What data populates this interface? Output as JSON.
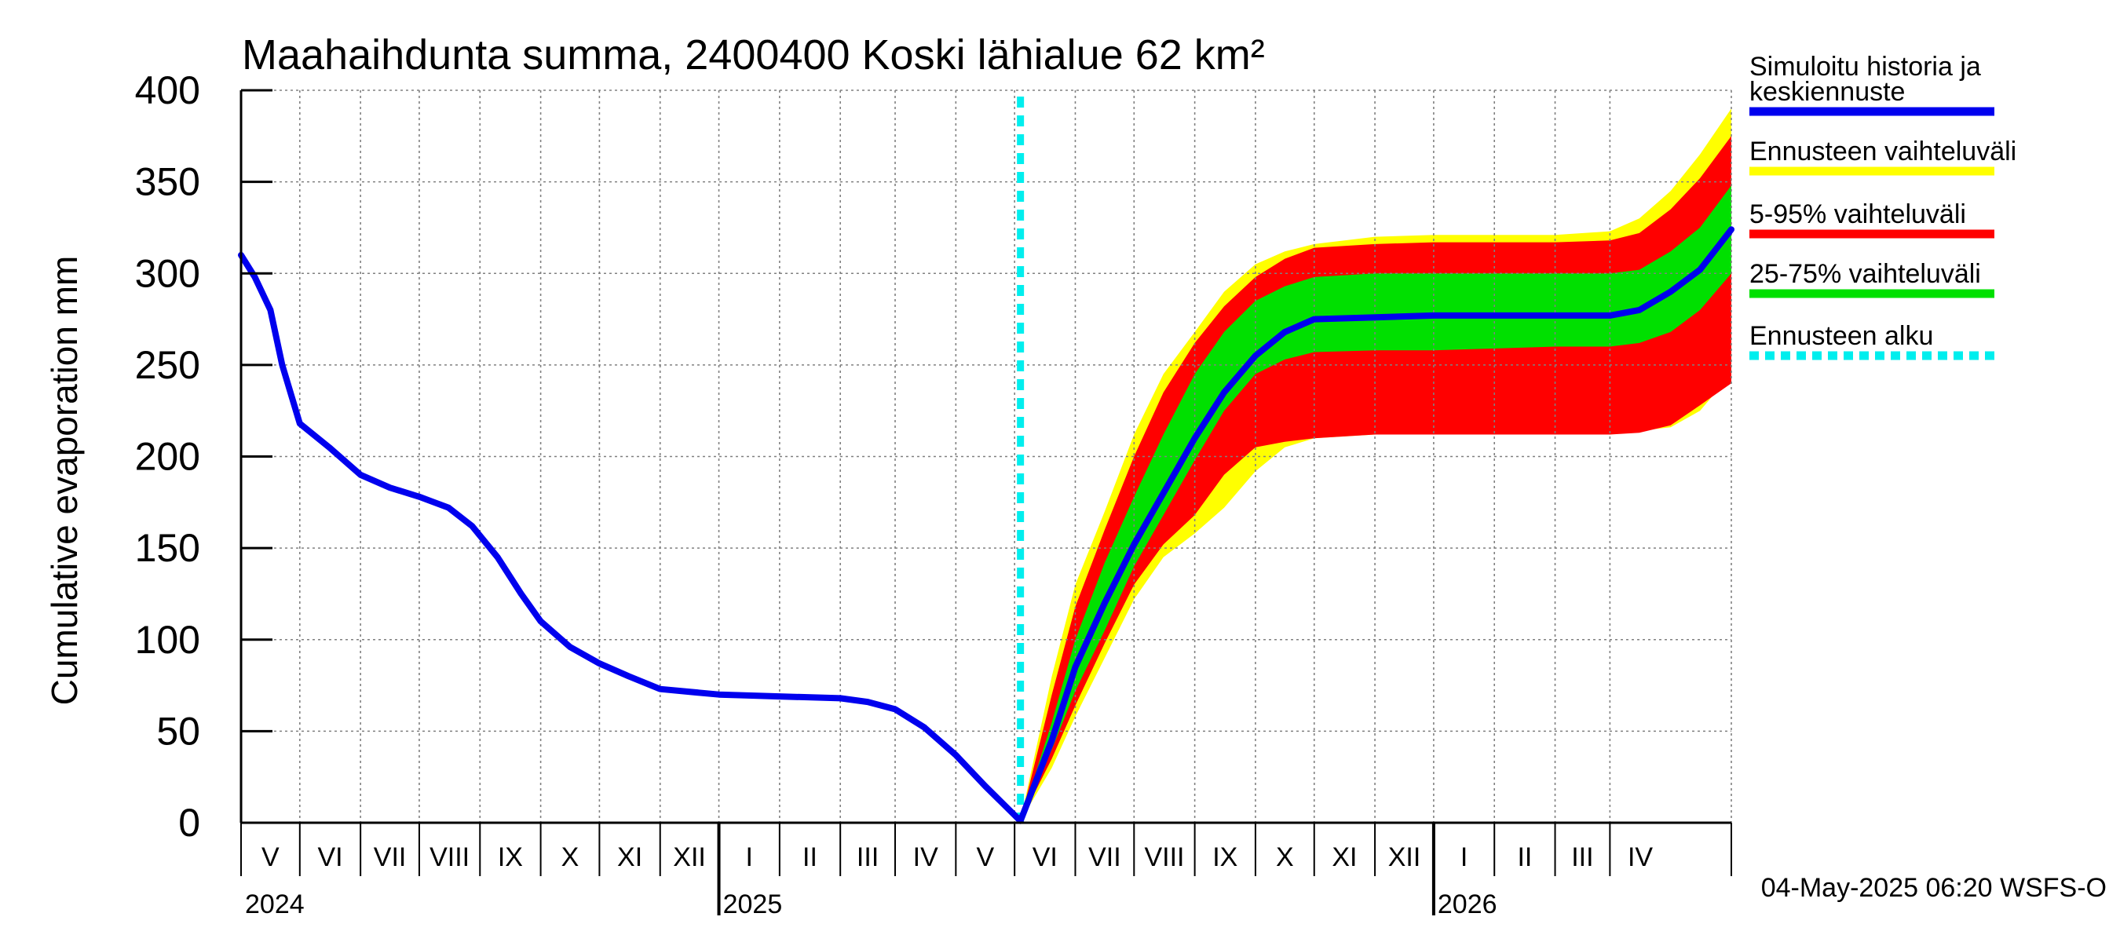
{
  "colors": {
    "history": "#0000ee",
    "forecast_range": "#ffff00",
    "p5_95": "#ff0000",
    "p25_75": "#00e000",
    "forecast_start": "#00eeee",
    "grid": "#808080"
  },
  "timestamp": "04-May-2025 06:20 WSFS-O",
  "legend": [
    {
      "lines": [
        "Simuloitu historia ja",
        "keskiennuste"
      ],
      "color_key": "history",
      "style": "solid"
    },
    {
      "lines": [
        "Ennusteen vaihteluväli"
      ],
      "color_key": "forecast_range",
      "style": "solid"
    },
    {
      "lines": [
        "5-95% vaihteluväli"
      ],
      "color_key": "p5_95",
      "style": "solid"
    },
    {
      "lines": [
        "25-75% vaihteluväli"
      ],
      "color_key": "p25_75",
      "style": "solid"
    },
    {
      "lines": [
        "Ennusteen alku"
      ],
      "color_key": "forecast_start",
      "style": "dashed"
    }
  ],
  "chart_data": {
    "type": "area",
    "title": "Maahaihdunta summa, 2400400 Koski lähialue 62 km²",
    "ylabel": "Cumulative evaporation   mm",
    "xlabel": "",
    "ylim": [
      0,
      400
    ],
    "yticks": [
      0,
      50,
      100,
      150,
      200,
      250,
      300,
      350,
      400
    ],
    "xlim": [
      "2024-04-01",
      "2026-05-02"
    ],
    "grid": true,
    "legend_position": "right",
    "x_month_labels": [
      {
        "label": "V",
        "start": "2024-04-01",
        "end": "2024-05-01"
      },
      {
        "label": "VI",
        "start": "2024-05-01",
        "end": "2024-06-01"
      },
      {
        "label": "VII",
        "start": "2024-06-01",
        "end": "2024-07-01"
      },
      {
        "label": "VIII",
        "start": "2024-07-01",
        "end": "2024-08-01"
      },
      {
        "label": "IX",
        "start": "2024-08-01",
        "end": "2024-09-01"
      },
      {
        "label": "X",
        "start": "2024-09-01",
        "end": "2024-10-01"
      },
      {
        "label": "XI",
        "start": "2024-10-01",
        "end": "2024-11-01"
      },
      {
        "label": "XII",
        "start": "2024-11-01",
        "end": "2024-12-01"
      },
      {
        "label": "I",
        "start": "2024-12-01",
        "end": "2025-01-01"
      },
      {
        "label": "II",
        "start": "2025-01-01",
        "end": "2025-02-01"
      },
      {
        "label": "III",
        "start": "2025-02-01",
        "end": "2025-03-01"
      },
      {
        "label": "IV",
        "start": "2025-03-01",
        "end": "2025-04-01"
      },
      {
        "label": "V",
        "start": "2025-04-01",
        "end": "2025-05-01"
      },
      {
        "label": "VI",
        "start": "2025-05-01",
        "end": "2025-06-01"
      },
      {
        "label": "VII",
        "start": "2025-06-01",
        "end": "2025-07-01"
      },
      {
        "label": "VIII",
        "start": "2025-07-01",
        "end": "2025-08-01"
      },
      {
        "label": "IX",
        "start": "2025-08-01",
        "end": "2025-09-01"
      },
      {
        "label": "X",
        "start": "2025-09-01",
        "end": "2025-10-01"
      },
      {
        "label": "XI",
        "start": "2025-10-01",
        "end": "2025-11-01"
      },
      {
        "label": "XII",
        "start": "2025-11-01",
        "end": "2025-12-01"
      },
      {
        "label": "I",
        "start": "2025-12-01",
        "end": "2026-01-01"
      },
      {
        "label": "II",
        "start": "2026-01-01",
        "end": "2026-02-01"
      },
      {
        "label": "III",
        "start": "2026-02-01",
        "end": "2026-03-01"
      },
      {
        "label": "IV",
        "start": "2026-03-01",
        "end": "2026-04-01"
      }
    ],
    "year_labels": [
      {
        "label": "2024",
        "at": "2024-04-01"
      },
      {
        "label": "2025",
        "at": "2024-12-01"
      },
      {
        "label": "2026",
        "at": "2025-12-01"
      }
    ],
    "year_boundaries": [
      "2024-12-01",
      "2025-12-01"
    ],
    "forecast_start": "2025-05-04",
    "series": [
      {
        "name": "Simuloitu historia ja keskiennuste",
        "color_key": "history",
        "x": [
          "2024-04-01",
          "2024-04-08",
          "2024-04-16",
          "2024-04-22",
          "2024-05-01",
          "2024-05-16",
          "2024-06-01",
          "2024-06-16",
          "2024-07-01",
          "2024-07-16",
          "2024-07-28",
          "2024-08-10",
          "2024-08-22",
          "2024-09-01",
          "2024-09-16",
          "2024-10-01",
          "2024-10-16",
          "2024-11-01",
          "2024-12-01",
          "2025-01-01",
          "2025-02-01",
          "2025-02-15",
          "2025-03-01",
          "2025-03-16",
          "2025-04-01",
          "2025-04-16",
          "2025-05-04",
          "2025-05-20",
          "2025-06-01",
          "2025-06-16",
          "2025-07-01",
          "2025-07-16",
          "2025-08-01",
          "2025-08-16",
          "2025-09-01",
          "2025-09-16",
          "2025-10-01",
          "2025-11-01",
          "2025-12-01",
          "2026-01-01",
          "2026-02-01",
          "2026-02-16",
          "2026-03-01",
          "2026-03-16",
          "2026-04-01",
          "2026-04-16",
          "2026-05-02"
        ],
        "values": [
          310,
          298,
          280,
          250,
          218,
          205,
          190,
          183,
          178,
          172,
          162,
          145,
          125,
          110,
          96,
          87,
          80,
          73,
          70,
          69,
          68,
          66,
          62,
          52,
          37,
          20,
          1,
          45,
          85,
          120,
          152,
          180,
          210,
          235,
          255,
          268,
          275,
          276,
          277,
          277,
          277,
          277,
          277,
          280,
          290,
          302,
          324
        ]
      },
      {
        "name": "Ennusteen vaihteluväli",
        "color_key": "forecast_range",
        "x": [
          "2025-05-04",
          "2025-05-20",
          "2025-06-01",
          "2025-06-16",
          "2025-07-01",
          "2025-07-16",
          "2025-08-01",
          "2025-08-16",
          "2025-09-01",
          "2025-09-16",
          "2025-10-01",
          "2025-11-01",
          "2025-12-01",
          "2026-01-01",
          "2026-02-01",
          "2026-03-01",
          "2026-03-16",
          "2026-04-01",
          "2026-04-16",
          "2026-05-02"
        ],
        "upper": [
          1,
          80,
          130,
          170,
          212,
          245,
          268,
          290,
          305,
          312,
          316,
          320,
          321,
          321,
          321,
          323,
          330,
          345,
          365,
          390
        ],
        "lower": [
          1,
          30,
          58,
          90,
          122,
          145,
          158,
          172,
          192,
          205,
          210,
          212,
          212,
          212,
          212,
          212,
          214,
          216,
          225,
          245
        ]
      },
      {
        "name": "5-95% vaihteluväli",
        "color_key": "p5_95",
        "x": [
          "2025-05-04",
          "2025-05-20",
          "2025-06-01",
          "2025-06-16",
          "2025-07-01",
          "2025-07-16",
          "2025-08-01",
          "2025-08-16",
          "2025-09-01",
          "2025-09-16",
          "2025-10-01",
          "2025-11-01",
          "2025-12-01",
          "2026-01-01",
          "2026-02-01",
          "2026-03-01",
          "2026-03-16",
          "2026-04-01",
          "2026-04-16",
          "2026-05-02"
        ],
        "upper": [
          1,
          70,
          118,
          160,
          200,
          235,
          262,
          282,
          298,
          308,
          314,
          316,
          317,
          317,
          317,
          318,
          322,
          335,
          352,
          375
        ],
        "lower": [
          1,
          35,
          64,
          98,
          130,
          152,
          168,
          190,
          205,
          208,
          210,
          212,
          212,
          212,
          212,
          212,
          213,
          217,
          228,
          240
        ]
      },
      {
        "name": "25-75% vaihteluväli",
        "color_key": "p25_75",
        "x": [
          "2025-05-04",
          "2025-05-20",
          "2025-06-01",
          "2025-06-16",
          "2025-07-01",
          "2025-07-16",
          "2025-08-01",
          "2025-08-16",
          "2025-09-01",
          "2025-09-16",
          "2025-10-01",
          "2025-11-01",
          "2025-12-01",
          "2026-01-01",
          "2026-02-01",
          "2026-03-01",
          "2026-03-16",
          "2026-04-01",
          "2026-04-16",
          "2026-05-02"
        ],
        "upper": [
          1,
          55,
          100,
          142,
          178,
          212,
          245,
          268,
          285,
          293,
          298,
          300,
          300,
          300,
          300,
          300,
          302,
          312,
          325,
          348
        ],
        "lower": [
          1,
          40,
          72,
          105,
          140,
          168,
          198,
          225,
          245,
          253,
          257,
          258,
          258,
          259,
          260,
          260,
          262,
          268,
          280,
          300
        ]
      }
    ]
  }
}
